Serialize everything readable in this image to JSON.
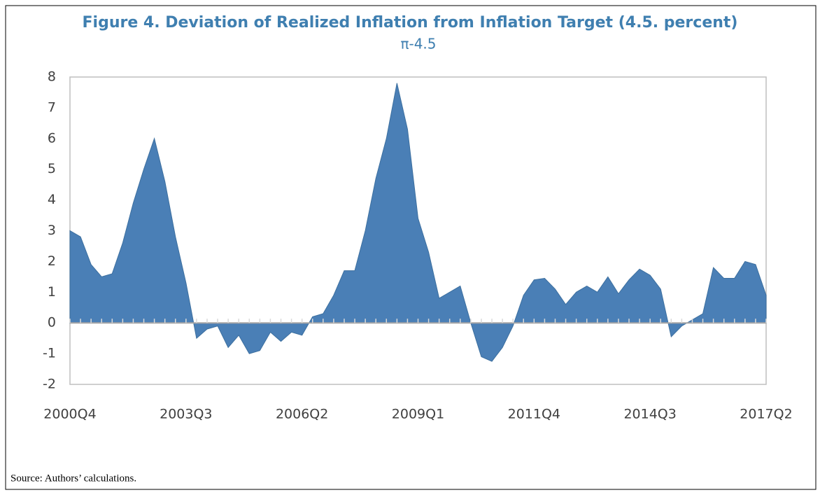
{
  "chart_data": {
    "type": "area",
    "title": "Figure 4. Deviation of Realized Inflation from Inflation Target (4.5. percent)",
    "subtitle": "π-4.5",
    "source": "Source: Authors’ calculations.",
    "categories": [
      "2000Q4",
      null,
      null,
      null,
      null,
      null,
      null,
      null,
      null,
      null,
      null,
      "2003Q3",
      null,
      null,
      null,
      null,
      null,
      null,
      null,
      null,
      null,
      null,
      "2006Q2",
      null,
      null,
      null,
      null,
      null,
      null,
      null,
      null,
      null,
      null,
      "2009Q1",
      null,
      null,
      null,
      null,
      null,
      null,
      null,
      null,
      null,
      null,
      "2011Q4",
      null,
      null,
      null,
      null,
      null,
      null,
      null,
      null,
      null,
      null,
      "2014Q3",
      null,
      null,
      null,
      null,
      null,
      null,
      null,
      null,
      null,
      null,
      "2017Q2"
    ],
    "values": [
      3.0,
      2.8,
      1.9,
      1.5,
      1.6,
      2.6,
      3.9,
      5.0,
      6.0,
      4.6,
      2.8,
      1.3,
      -0.5,
      -0.2,
      -0.1,
      -0.8,
      -0.4,
      -1.0,
      -0.9,
      -0.3,
      -0.6,
      -0.3,
      -0.4,
      0.2,
      0.3,
      0.9,
      1.7,
      1.7,
      3.0,
      4.7,
      6.0,
      7.8,
      6.3,
      3.4,
      2.3,
      0.8,
      1.0,
      1.2,
      0.0,
      -1.1,
      -1.25,
      -0.8,
      -0.1,
      0.9,
      1.4,
      1.45,
      1.1,
      0.6,
      1.0,
      1.2,
      1.0,
      1.5,
      0.95,
      1.4,
      1.75,
      1.55,
      1.1,
      -0.45,
      -0.1,
      0.1,
      0.3,
      1.8,
      1.45,
      1.45,
      2.0,
      1.9,
      0.9
    ],
    "color": "#4a7fb6",
    "ylim": [
      -2,
      8
    ],
    "yticks": [
      -2,
      -1,
      0,
      1,
      2,
      3,
      4,
      5,
      6,
      7,
      8
    ],
    "grid": false
  }
}
